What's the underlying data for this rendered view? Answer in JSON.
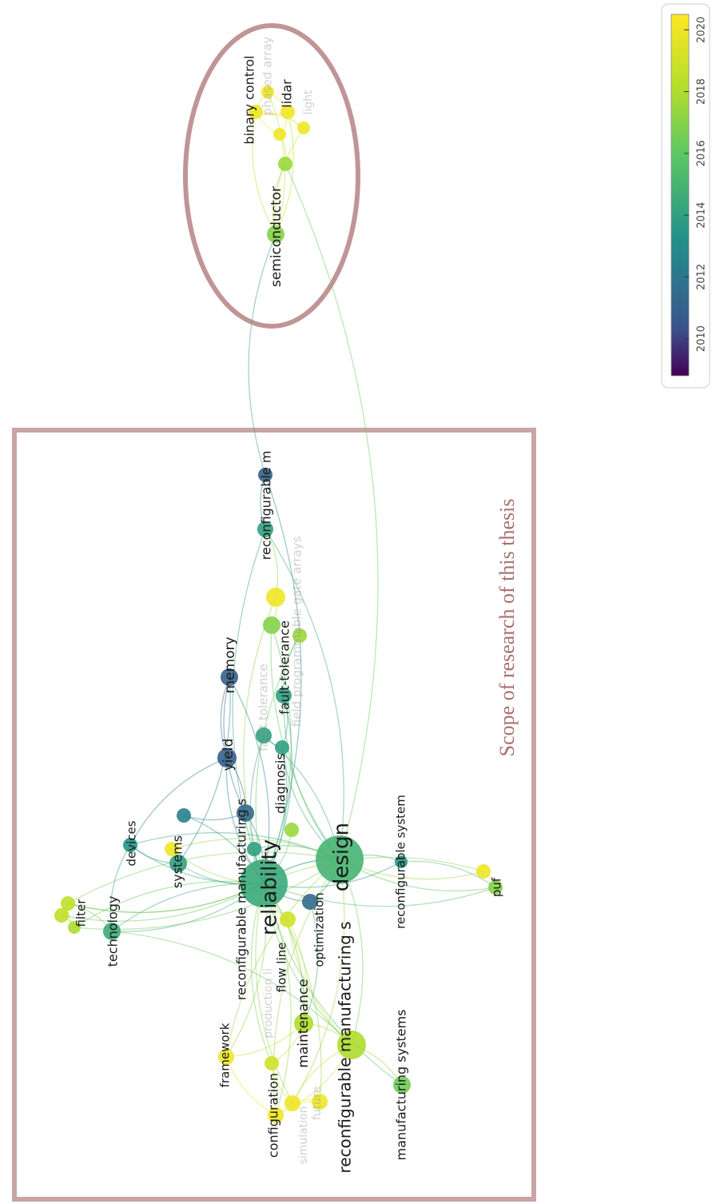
{
  "network": {
    "nodes": [
      {
        "label": "binary control",
        "year": 2020
      },
      {
        "label": "phased array",
        "year": 2020
      },
      {
        "label": "lidar",
        "year": 2020
      },
      {
        "label": "light",
        "year": 2020
      },
      {
        "label": "semiconductor",
        "year": 2017
      },
      {
        "year": 2017.5
      },
      {
        "year": 2020
      },
      {
        "label": "reconfigurable m",
        "year": 2011
      },
      {
        "year": 2014
      },
      {
        "label": "field programmable gate arrays",
        "year": 2020
      },
      {
        "label": "fault-tolerance",
        "year": 2014
      },
      {
        "label": "memory",
        "year": 2011
      },
      {
        "label": "fault tolerance",
        "year": 2014
      },
      {
        "label": "yield",
        "year": 2011
      },
      {
        "label": "diagnosis",
        "year": 2014
      },
      {
        "label": "reconfigurable manufacturing s",
        "year": 2011.5
      },
      {
        "label": "devices",
        "year": 2013.5
      },
      {
        "label": "systems",
        "year": 2014
      },
      {
        "label": "reliability",
        "year": 2014.5
      },
      {
        "label": "design",
        "year": 2015
      },
      {
        "label": "reconfigurable system",
        "year": 2013.5
      },
      {
        "label": "puf",
        "year": 2017
      },
      {
        "label": "filter",
        "year": 2018.5
      },
      {
        "label": "technology",
        "year": 2014.5
      },
      {
        "label": "optimization",
        "year": 2011.5
      },
      {
        "label": "flow line",
        "year": 2019
      },
      {
        "label": "framework",
        "year": 2020
      },
      {
        "label": "maintenance",
        "year": 2018
      },
      {
        "label": "reconfigurable manufacturing s",
        "year": 2018
      },
      {
        "label": "manufacturing systems",
        "year": 2016.5
      },
      {
        "label": "configuration",
        "year": 2020
      },
      {
        "label": "future",
        "year": 2020
      },
      {
        "label": "simulation",
        "year": 2020
      },
      {
        "label": "production li",
        "year": 2019
      },
      {
        "year": 2020
      },
      {
        "year": 2018.5
      },
      {
        "year": 2018
      },
      {
        "year": 2012.5
      },
      {
        "year": 2014
      },
      {
        "year": 2017.5
      },
      {
        "year": 2017
      },
      {
        "year": 2017.5
      },
      {
        "year": 2020
      }
    ]
  },
  "annotation": "Scope of research of this thesis",
  "color_bar": {
    "range": [
      2008.8,
      2020.5
    ],
    "ticks": [
      2010,
      2012,
      2014,
      2016,
      2018,
      2020
    ]
  }
}
